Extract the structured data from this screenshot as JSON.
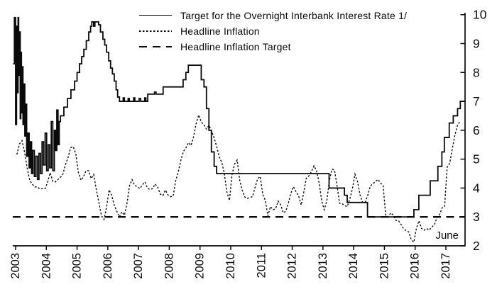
{
  "figure": {
    "background": "#ffffff",
    "line_color": "#0a0a0a"
  },
  "legend": {
    "position": "top-left",
    "items": [
      {
        "label": "Target for the Overnight Interbank Interest Rate 1/",
        "style": "solid"
      },
      {
        "label": "Headline Inflation",
        "style": "dotted"
      },
      {
        "label": "Headline Inflation Target",
        "style": "dashed"
      }
    ]
  },
  "chart_data": {
    "type": "line",
    "title": "",
    "xlabel": "",
    "ylabel": "",
    "grid": false,
    "y_axis": {
      "side": "right",
      "range": [
        2,
        10
      ],
      "ticks": [
        2,
        3,
        4,
        5,
        6,
        7,
        8,
        9,
        10
      ],
      "tick_labels": [
        "2",
        "3",
        "4",
        "5",
        "6",
        "7",
        "8",
        "9",
        "10"
      ]
    },
    "x_axis": {
      "side": "bottom",
      "range": [
        2002.908,
        2017.624
      ],
      "ticks": [
        2003,
        2004,
        2005,
        2006,
        2007,
        2008,
        2009,
        2010,
        2011,
        2012,
        2013,
        2014,
        2015,
        2016,
        2017
      ],
      "tick_labels": [
        "2003",
        "2004",
        "2005",
        "2006",
        "2007",
        "2008",
        "2009",
        "2010",
        "2011",
        "2012",
        "2013",
        "2014",
        "2015",
        "2016",
        "2017"
      ],
      "tick_label_rotation_deg": -90
    },
    "annotations": [
      {
        "text": "June",
        "x": 2017.35,
        "y": 2.3
      }
    ],
    "series": [
      {
        "name": "Target for the Overnight Interbank Interest Rate 1/",
        "style": "solid",
        "interpolation": "step-after",
        "points": [
          [
            2002.92,
            8.3
          ],
          [
            2002.96,
            9.9
          ],
          [
            2003.0,
            6.2
          ],
          [
            2003.03,
            9.6
          ],
          [
            2003.06,
            7.3
          ],
          [
            2003.08,
            9.9
          ],
          [
            2003.1,
            7.9
          ],
          [
            2003.12,
            9.4
          ],
          [
            2003.15,
            6.4
          ],
          [
            2003.17,
            8.7
          ],
          [
            2003.19,
            6.6
          ],
          [
            2003.22,
            8.2
          ],
          [
            2003.24,
            6.2
          ],
          [
            2003.27,
            7.6
          ],
          [
            2003.3,
            5.8
          ],
          [
            2003.33,
            6.9
          ],
          [
            2003.36,
            5.1
          ],
          [
            2003.4,
            5.9
          ],
          [
            2003.44,
            4.7
          ],
          [
            2003.48,
            5.6
          ],
          [
            2003.52,
            4.5
          ],
          [
            2003.56,
            5.3
          ],
          [
            2003.61,
            4.4
          ],
          [
            2003.66,
            5.1
          ],
          [
            2003.71,
            4.3
          ],
          [
            2003.76,
            5.2
          ],
          [
            2003.81,
            4.5
          ],
          [
            2003.86,
            5.6
          ],
          [
            2003.91,
            4.8
          ],
          [
            2003.96,
            5.9
          ],
          [
            2004.01,
            4.6
          ],
          [
            2004.06,
            5.5
          ],
          [
            2004.11,
            4.7
          ],
          [
            2004.16,
            6.3
          ],
          [
            2004.21,
            4.6
          ],
          [
            2004.26,
            6.0
          ],
          [
            2004.3,
            5.3
          ],
          [
            2004.34,
            6.7
          ],
          [
            2004.38,
            5.5
          ],
          [
            2004.42,
            6.3
          ],
          [
            2004.46,
            6.5
          ],
          [
            2004.57,
            6.8
          ],
          [
            2004.69,
            7.1
          ],
          [
            2004.8,
            7.4
          ],
          [
            2004.92,
            7.7
          ],
          [
            2005.0,
            8.0
          ],
          [
            2005.08,
            8.3
          ],
          [
            2005.15,
            8.55
          ],
          [
            2005.22,
            8.8
          ],
          [
            2005.3,
            9.1
          ],
          [
            2005.38,
            9.4
          ],
          [
            2005.44,
            9.6
          ],
          [
            2005.48,
            9.75
          ],
          [
            2005.54,
            9.6
          ],
          [
            2005.58,
            9.75
          ],
          [
            2005.7,
            9.65
          ],
          [
            2005.76,
            9.4
          ],
          [
            2005.84,
            9.15
          ],
          [
            2005.9,
            8.95
          ],
          [
            2005.96,
            8.7
          ],
          [
            2006.03,
            8.4
          ],
          [
            2006.09,
            8.15
          ],
          [
            2006.15,
            7.95
          ],
          [
            2006.21,
            7.7
          ],
          [
            2006.27,
            7.4
          ],
          [
            2006.32,
            7.15
          ],
          [
            2006.38,
            7.0
          ],
          [
            2006.5,
            7.12
          ],
          [
            2006.54,
            7.0
          ],
          [
            2006.66,
            7.1
          ],
          [
            2006.7,
            7.0
          ],
          [
            2006.84,
            7.12
          ],
          [
            2006.88,
            7.0
          ],
          [
            2007.02,
            7.1
          ],
          [
            2007.07,
            7.0
          ],
          [
            2007.2,
            7.12
          ],
          [
            2007.24,
            7.0
          ],
          [
            2007.3,
            7.25
          ],
          [
            2007.52,
            7.32
          ],
          [
            2007.57,
            7.25
          ],
          [
            2007.8,
            7.5
          ],
          [
            2008.45,
            7.75
          ],
          [
            2008.54,
            8.0
          ],
          [
            2008.62,
            8.25
          ],
          [
            2009.04,
            7.75
          ],
          [
            2009.13,
            7.5
          ],
          [
            2009.21,
            6.75
          ],
          [
            2009.29,
            6.0
          ],
          [
            2009.37,
            5.25
          ],
          [
            2009.46,
            4.75
          ],
          [
            2009.54,
            4.5
          ],
          [
            2013.2,
            4.0
          ],
          [
            2013.7,
            3.75
          ],
          [
            2013.79,
            3.5
          ],
          [
            2014.45,
            3.0
          ],
          [
            2015.96,
            3.25
          ],
          [
            2016.12,
            3.75
          ],
          [
            2016.49,
            4.25
          ],
          [
            2016.74,
            4.75
          ],
          [
            2016.87,
            5.25
          ],
          [
            2016.95,
            5.75
          ],
          [
            2017.11,
            6.25
          ],
          [
            2017.24,
            6.5
          ],
          [
            2017.38,
            6.75
          ],
          [
            2017.47,
            7.0
          ],
          [
            2017.62,
            7.0
          ]
        ]
      },
      {
        "name": "Headline Inflation",
        "style": "dotted",
        "interpolation": "linear",
        "x_start": 2003.0417,
        "x_step": 0.083333,
        "values": [
          5.16,
          5.52,
          5.64,
          5.25,
          4.7,
          4.27,
          4.13,
          4.04,
          4.04,
          3.96,
          3.98,
          3.98,
          4.2,
          4.53,
          4.23,
          4.21,
          4.29,
          4.37,
          4.49,
          4.82,
          5.06,
          5.4,
          5.43,
          5.19,
          4.54,
          4.27,
          4.39,
          4.6,
          4.6,
          4.33,
          4.47,
          3.95,
          3.51,
          3.05,
          2.91,
          3.33,
          3.94,
          3.75,
          3.41,
          3.2,
          3.0,
          3.18,
          3.06,
          3.47,
          4.09,
          4.29,
          4.09,
          4.05,
          3.98,
          4.11,
          4.21,
          3.99,
          3.95,
          3.98,
          4.14,
          4.03,
          3.79,
          3.74,
          3.93,
          3.76,
          3.7,
          3.72,
          4.25,
          4.55,
          4.95,
          5.26,
          5.39,
          5.57,
          5.47,
          5.78,
          6.23,
          6.53,
          6.28,
          6.2,
          6.04,
          6.17,
          5.98,
          5.74,
          5.44,
          5.08,
          4.89,
          4.5,
          3.86,
          3.57,
          4.46,
          4.83,
          4.97,
          4.27,
          3.92,
          3.69,
          3.64,
          3.68,
          3.7,
          4.02,
          4.32,
          4.4,
          3.78,
          3.57,
          3.04,
          3.36,
          3.25,
          3.28,
          3.55,
          3.42,
          3.14,
          3.2,
          3.48,
          3.82,
          4.05,
          3.87,
          3.73,
          3.41,
          3.85,
          4.34,
          4.42,
          4.57,
          4.77,
          4.6,
          4.18,
          3.57,
          3.25,
          3.55,
          4.25,
          4.65,
          4.63,
          4.09,
          3.47,
          3.46,
          3.39,
          3.36,
          3.62,
          3.97,
          4.48,
          4.23,
          3.76,
          3.5,
          3.51,
          3.75,
          4.07,
          4.15,
          4.22,
          4.3,
          4.17,
          4.08,
          3.07,
          3.0,
          3.14,
          3.06,
          2.88,
          2.87,
          2.74,
          2.59,
          2.52,
          2.48,
          2.21,
          2.13,
          2.61,
          2.87,
          2.6,
          2.54,
          2.6,
          2.54,
          2.65,
          2.73,
          2.97,
          3.06,
          3.31,
          3.36,
          4.72,
          4.86,
          5.35,
          5.82,
          6.16,
          6.31
        ]
      },
      {
        "name": "Headline Inflation Target",
        "style": "dashed",
        "interpolation": "linear",
        "points": [
          [
            2002.908,
            3.0
          ],
          [
            2017.624,
            3.0
          ]
        ]
      }
    ]
  }
}
